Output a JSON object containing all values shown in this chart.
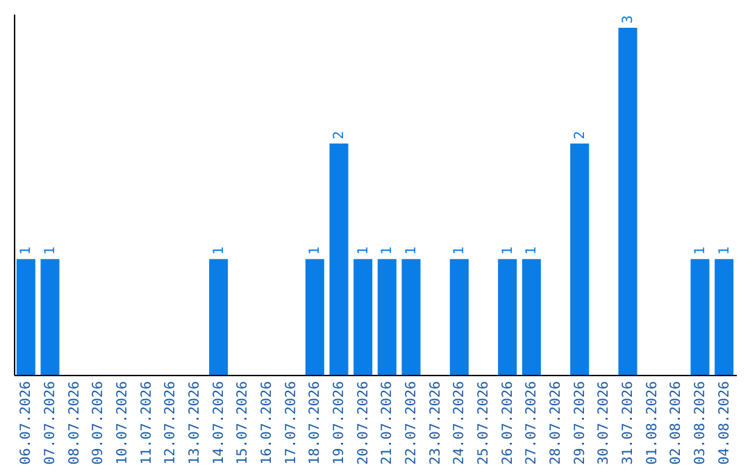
{
  "chart_data": {
    "type": "bar",
    "categories": [
      "06.07.2026",
      "07.07.2026",
      "08.07.2026",
      "09.07.2026",
      "10.07.2026",
      "11.07.2026",
      "12.07.2026",
      "13.07.2026",
      "14.07.2026",
      "15.07.2026",
      "16.07.2026",
      "17.07.2026",
      "18.07.2026",
      "19.07.2026",
      "20.07.2026",
      "21.07.2026",
      "22.07.2026",
      "23.07.2026",
      "24.07.2026",
      "25.07.2026",
      "26.07.2026",
      "27.07.2026",
      "28.07.2026",
      "29.07.2026",
      "30.07.2026",
      "31.07.2026",
      "01.08.2026",
      "02.08.2026",
      "03.08.2026",
      "04.08.2026"
    ],
    "values": [
      1,
      1,
      0,
      0,
      0,
      0,
      0,
      0,
      1,
      0,
      0,
      0,
      1,
      2,
      1,
      1,
      1,
      0,
      1,
      0,
      1,
      1,
      0,
      2,
      0,
      3,
      0,
      0,
      1,
      1
    ],
    "value_labels": [
      "1",
      "1",
      null,
      null,
      null,
      null,
      null,
      null,
      "1",
      null,
      null,
      null,
      "1",
      "2",
      "1",
      "1",
      "1",
      null,
      "1",
      null,
      "1",
      "1",
      null,
      "2",
      null,
      "3",
      null,
      null,
      "1",
      "1"
    ],
    "color": "#0b7de6",
    "ylim": [
      0,
      3.12
    ],
    "tick_labels": "x",
    "grid": false
  }
}
